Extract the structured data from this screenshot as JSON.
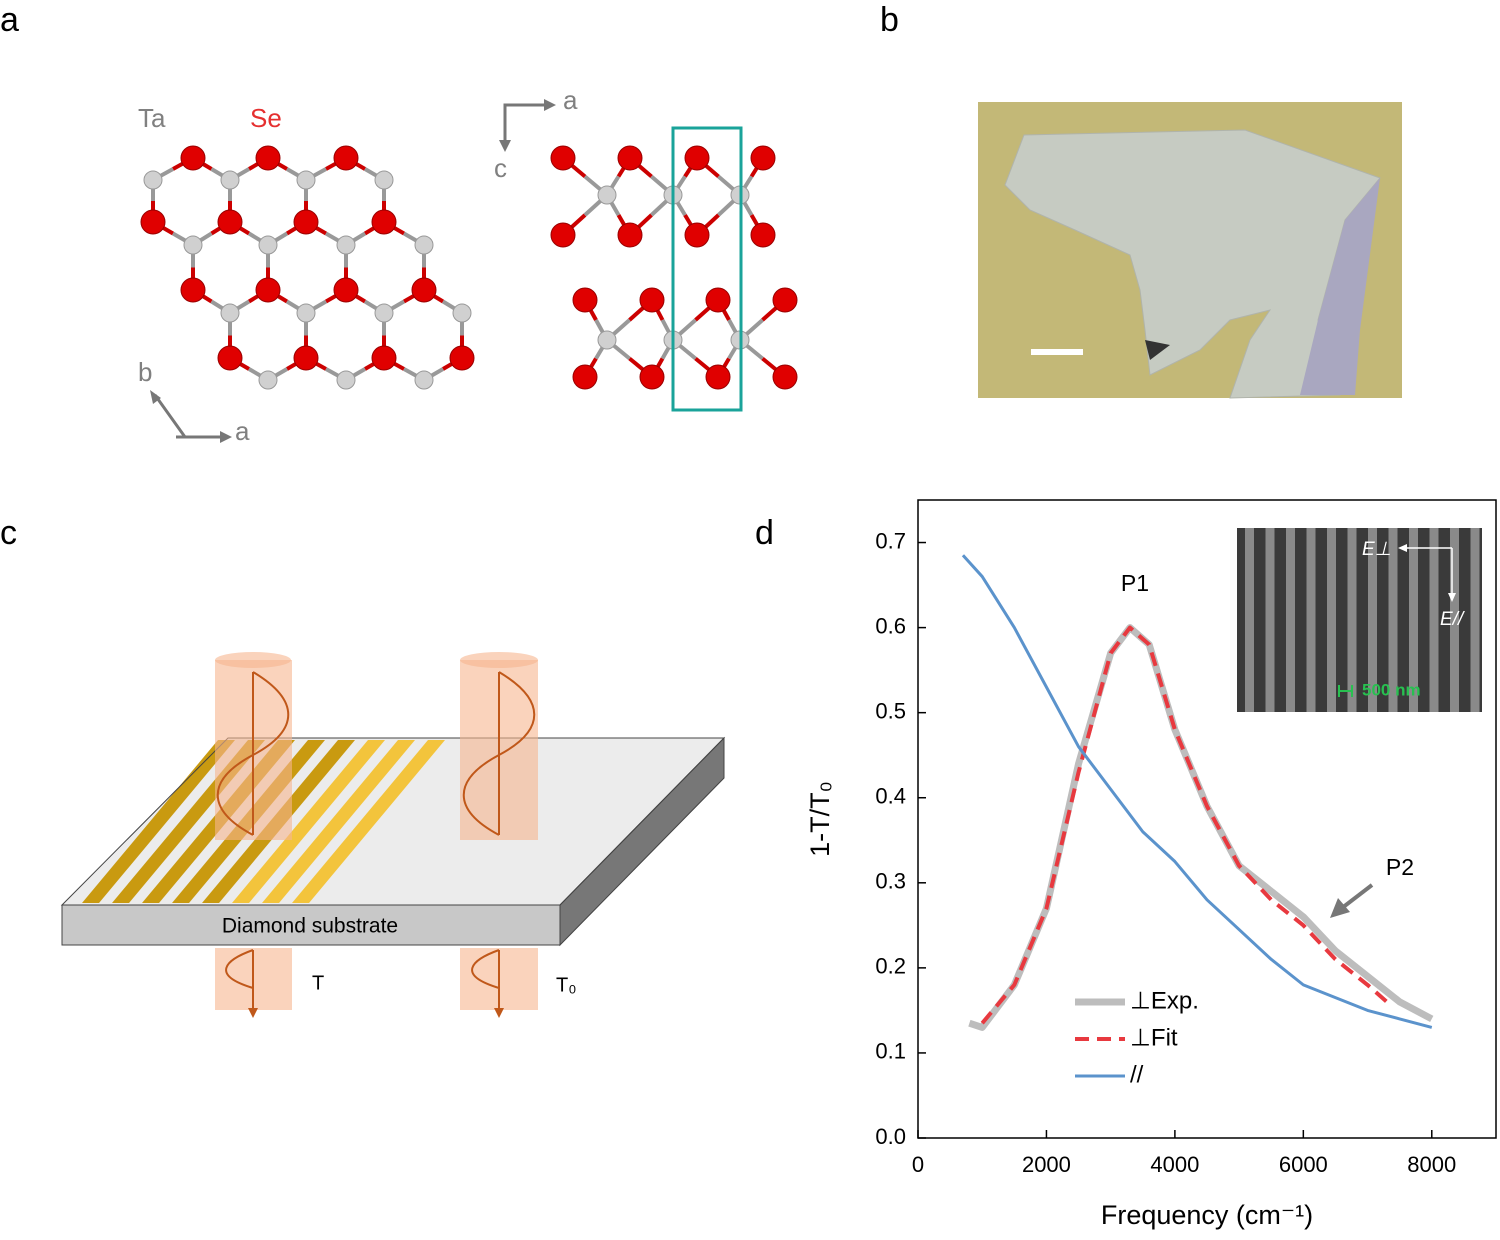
{
  "panels": {
    "a": {
      "label": "a",
      "ta": "Ta",
      "se": "Se",
      "axes_left": [
        "b",
        "a"
      ],
      "axes_right": [
        "a",
        "c"
      ]
    },
    "b": {
      "label": "b"
    },
    "c": {
      "label": "c",
      "substrate": "Diamond substrate",
      "t": "T",
      "t0": "T₀"
    },
    "d": {
      "label": "d"
    }
  },
  "chart_data": {
    "type": "line",
    "xlabel": "Frequency (cm⁻¹)",
    "ylabel": "1-T/T₀",
    "xlim": [
      0,
      9000
    ],
    "ylim": [
      0,
      0.75
    ],
    "xticks": [
      0,
      2000,
      4000,
      6000,
      8000
    ],
    "yticks": [
      {
        "value": 0,
        "label": "0.0"
      },
      0.1,
      0.2,
      0.3,
      0.4,
      0.5,
      0.6,
      0.7
    ],
    "annotations": [
      "P1",
      "P2"
    ],
    "inset": {
      "e_perp": "E⊥",
      "e_par": "E//",
      "scale": "500 nm"
    },
    "series": [
      {
        "name": "⊥Exp.",
        "color": "#bdbdbd",
        "dash": false,
        "width": 7,
        "x": [
          800,
          1000,
          1500,
          2000,
          2500,
          3000,
          3300,
          3600,
          4000,
          4500,
          5000,
          5500,
          6000,
          6500,
          7000,
          7500,
          8000
        ],
        "values": [
          0.135,
          0.13,
          0.18,
          0.27,
          0.44,
          0.57,
          0.6,
          0.58,
          0.48,
          0.39,
          0.32,
          0.29,
          0.26,
          0.22,
          0.19,
          0.16,
          0.14
        ]
      },
      {
        "name": "⊥Fit",
        "color": "#e8393f",
        "dash": true,
        "width": 4,
        "x": [
          1000,
          1500,
          2000,
          2500,
          3000,
          3300,
          3600,
          4000,
          4500,
          5000,
          5500,
          6000,
          6500,
          7000,
          7300
        ],
        "values": [
          0.135,
          0.18,
          0.27,
          0.43,
          0.57,
          0.6,
          0.58,
          0.48,
          0.39,
          0.32,
          0.28,
          0.25,
          0.21,
          0.18,
          0.16
        ]
      },
      {
        "name": "//",
        "color": "#5b93cc",
        "dash": false,
        "width": 3,
        "x": [
          700,
          1000,
          1500,
          2000,
          2500,
          3000,
          3500,
          4000,
          4500,
          5000,
          5500,
          6000,
          6500,
          7000,
          7500,
          8000
        ],
        "values": [
          0.685,
          0.66,
          0.6,
          0.53,
          0.46,
          0.41,
          0.36,
          0.325,
          0.28,
          0.245,
          0.21,
          0.18,
          0.165,
          0.15,
          0.14,
          0.13
        ]
      }
    ]
  }
}
